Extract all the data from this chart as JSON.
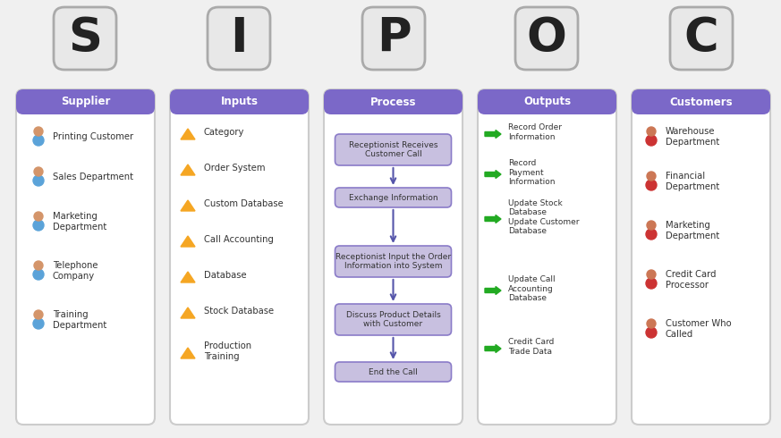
{
  "title_letters": [
    "S",
    "I",
    "P",
    "O",
    "C"
  ],
  "column_headers": [
    "Supplier",
    "Inputs",
    "Process",
    "Outputs",
    "Customers"
  ],
  "header_color": "#7B68C8",
  "header_text_color": "#FFFFFF",
  "panel_bg": "#FFFFFF",
  "panel_border": "#CCCCCC",
  "bg_color": "#F0F0F0",
  "supplier_items": [
    "Printing Customer",
    "Sales Department",
    "Marketing\nDepartment",
    "Telephone\nCompany",
    "Training\nDepartment"
  ],
  "input_items": [
    "Category",
    "Order System",
    "Custom Database",
    "Call Accounting",
    "Database",
    "Stock Database",
    "Production\nTraining"
  ],
  "process_items": [
    "Receptionist Receives\nCustomer Call",
    "Exchange Information",
    "Receptionist Input the Order\nInformation into System",
    "Discuss Product Details\nwith Customer",
    "End the Call"
  ],
  "output_items": [
    "Record Order\nInformation",
    "Record\nPayment\nInformation",
    "Update Stock\nDatabase\nUpdate Customer\nDatabase",
    "Update Call\nAccounting\nDatabase",
    "Credit Card\nTrade Data"
  ],
  "customer_items": [
    "Warehouse\nDepartment",
    "Financial\nDepartment",
    "Marketing\nDepartment",
    "Credit Card\nProcessor",
    "Customer Who\nCalled"
  ],
  "process_box_color": "#C8C0E0",
  "process_box_border": "#8A7BC8",
  "arrow_color": "#5555AA",
  "output_arrow_color": "#00AA00",
  "letter_box_bg": "#E8E8E8",
  "letter_box_border": "#AAAAAA"
}
